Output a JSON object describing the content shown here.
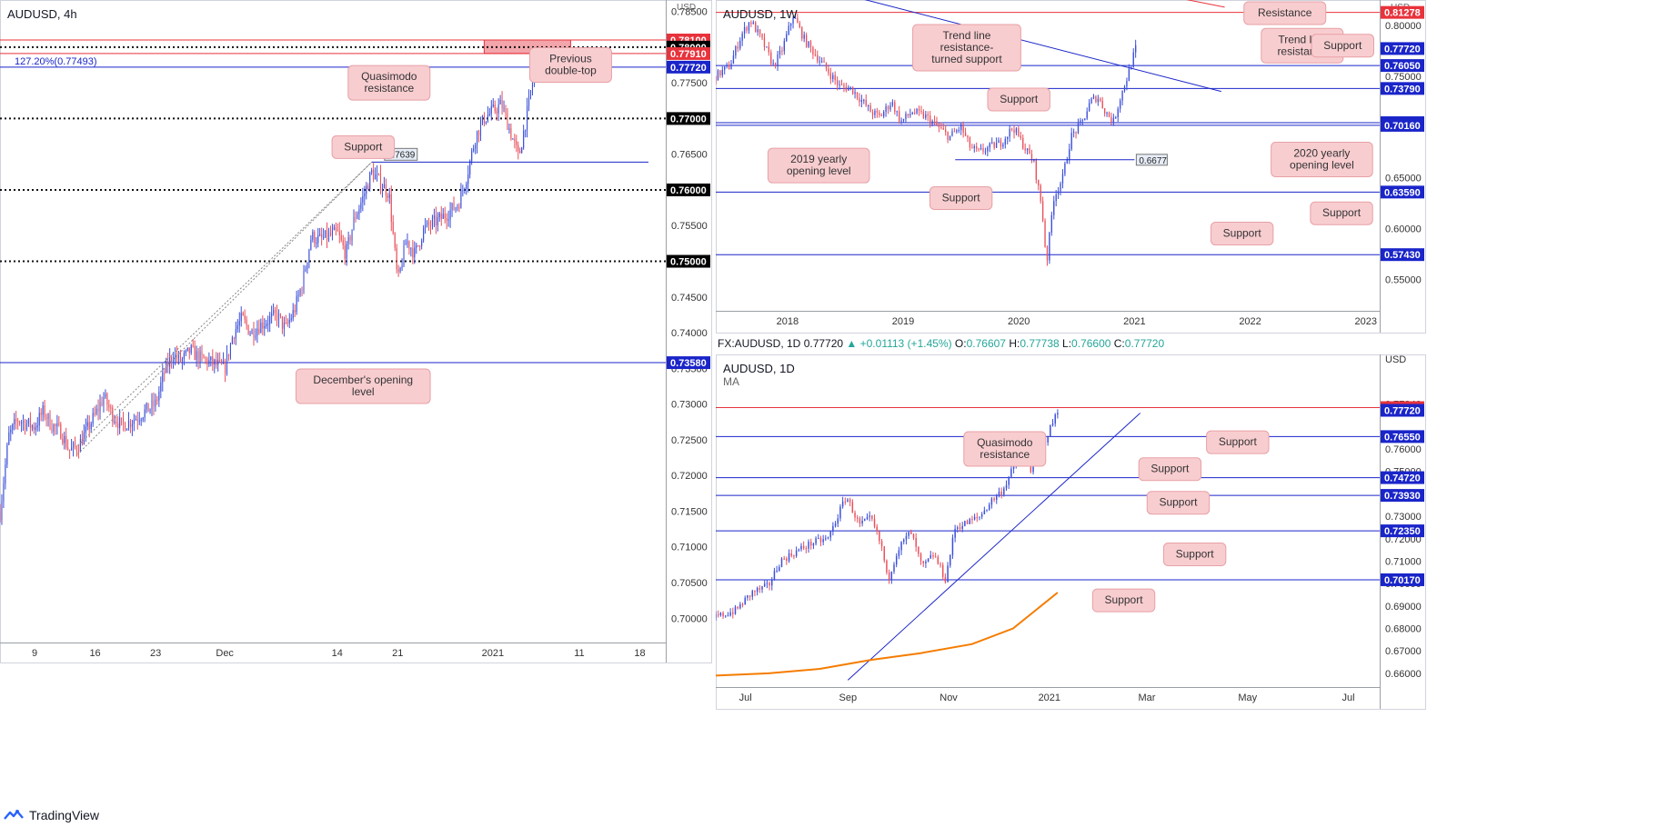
{
  "colors": {
    "up": "#3b4fd8",
    "down": "#e8505b",
    "support_line": "#1a25c9",
    "resistance_line": "#e8333c",
    "callout_bg": "#f8cdd0",
    "callout_border": "#e7a1a6",
    "ma": "#f57c00",
    "axis_text": "#333333",
    "grid_border": "#9aa0a6"
  },
  "footer": {
    "brand": "TradingView",
    "logo_icon": "tradingview-logo-icon"
  },
  "chart_data": [
    {
      "id": "h4",
      "type": "candlestick",
      "title": "AUDUSD, 4h",
      "ylim": [
        0.6966,
        0.7866
      ],
      "y_ticks": [
        0.785,
        0.78,
        0.775,
        0.77,
        0.765,
        0.76,
        0.755,
        0.75,
        0.745,
        0.74,
        0.735,
        0.73,
        0.725,
        0.72,
        0.715,
        0.71,
        0.705,
        0.7
      ],
      "y_tick_labels": [
        "0.78500",
        "0.78000",
        "0.77500",
        "0.77000",
        "0.76500",
        "0.76000",
        "0.75500",
        "0.75000",
        "0.74500",
        "0.74000",
        "0.73500",
        "0.73000",
        "0.72500",
        "0.72000",
        "0.71500",
        "0.71000",
        "0.70500",
        "0.70000"
      ],
      "axis_currency": "USD",
      "x_range": [
        "2020-11-05",
        "2021-01-21"
      ],
      "x_ticks": [
        {
          "x": "2020-11-09",
          "label": "9"
        },
        {
          "x": "2020-11-16",
          "label": "16"
        },
        {
          "x": "2020-11-23",
          "label": "23"
        },
        {
          "x": "2020-12-01",
          "label": "Dec"
        },
        {
          "x": "2020-12-14",
          "label": "14"
        },
        {
          "x": "2020-12-21",
          "label": "21"
        },
        {
          "x": "2021-01-01",
          "label": "2021"
        },
        {
          "x": "2021-01-11",
          "label": "11"
        },
        {
          "x": "2021-01-18",
          "label": "18"
        }
      ],
      "price_path": [
        [
          "2020-11-05",
          0.7148
        ],
        [
          "2020-11-06",
          0.7255
        ],
        [
          "2020-11-07",
          0.7278
        ],
        [
          "2020-11-09",
          0.7268
        ],
        [
          "2020-11-10",
          0.729
        ],
        [
          "2020-11-11",
          0.727
        ],
        [
          "2020-11-12",
          0.7262
        ],
        [
          "2020-11-13",
          0.7235
        ],
        [
          "2020-11-14",
          0.724
        ],
        [
          "2020-11-16",
          0.7285
        ],
        [
          "2020-11-17",
          0.731
        ],
        [
          "2020-11-18",
          0.7285
        ],
        [
          "2020-11-19",
          0.727
        ],
        [
          "2020-11-20",
          0.7275
        ],
        [
          "2020-11-23",
          0.73
        ],
        [
          "2020-11-24",
          0.7345
        ],
        [
          "2020-11-25",
          0.737
        ],
        [
          "2020-11-26",
          0.736
        ],
        [
          "2020-11-27",
          0.7375
        ],
        [
          "2020-11-28",
          0.7365
        ],
        [
          "2020-12-01",
          0.735
        ],
        [
          "2020-12-02",
          0.74
        ],
        [
          "2020-12-03",
          0.742
        ],
        [
          "2020-12-04",
          0.74
        ],
        [
          "2020-12-05",
          0.741
        ],
        [
          "2020-12-07",
          0.7425
        ],
        [
          "2020-12-08",
          0.7405
        ],
        [
          "2020-12-09",
          0.743
        ],
        [
          "2020-12-10",
          0.747
        ],
        [
          "2020-12-11",
          0.7535
        ],
        [
          "2020-12-12",
          0.753
        ],
        [
          "2020-12-14",
          0.754
        ],
        [
          "2020-12-15",
          0.751
        ],
        [
          "2020-12-16",
          0.756
        ],
        [
          "2020-12-17",
          0.759
        ],
        [
          "2020-12-18",
          0.7625
        ],
        [
          "2020-12-19",
          0.761
        ],
        [
          "2020-12-20",
          0.7595
        ],
        [
          "2020-12-21",
          0.747
        ],
        [
          "2020-12-22",
          0.753
        ],
        [
          "2020-12-23",
          0.751
        ],
        [
          "2020-12-24",
          0.7545
        ],
        [
          "2020-12-26",
          0.756
        ],
        [
          "2020-12-28",
          0.758
        ],
        [
          "2020-12-29",
          0.762
        ],
        [
          "2020-12-30",
          0.7675
        ],
        [
          "2020-12-31",
          0.77
        ],
        [
          "2021-01-01",
          0.771
        ],
        [
          "2021-01-02",
          0.772
        ],
        [
          "2021-01-04",
          0.7645
        ],
        [
          "2021-01-05",
          0.771
        ],
        [
          "2021-01-06",
          0.778
        ]
      ],
      "levels": [
        {
          "y": 0.781,
          "style": "solid",
          "color": "red",
          "label": "0.78100"
        },
        {
          "y": 0.78,
          "style": "dotted",
          "color": "black",
          "label": "0.78000"
        },
        {
          "y": 0.7791,
          "style": "solid",
          "color": "red",
          "label": "0.77910"
        },
        {
          "y": 0.7772,
          "style": "solid",
          "color": "blue",
          "label": "0.77720"
        },
        {
          "y": 0.77,
          "style": "dotted",
          "color": "black",
          "label": "0.77000"
        },
        {
          "y": 0.76,
          "style": "dotted",
          "color": "black",
          "label": "0.76000"
        },
        {
          "y": 0.75,
          "style": "dotted",
          "color": "black",
          "label": "0.75000"
        },
        {
          "y": 0.7358,
          "style": "solid",
          "color": "blue",
          "label": "0.73580"
        }
      ],
      "zone": {
        "x1": "2020-12-31",
        "x2": "2021-01-10",
        "y1": 0.7791,
        "y2": 0.781
      },
      "fib_label": "127.20%(0.77493)",
      "support_line": {
        "y": 0.7639,
        "x1": "2020-12-18",
        "x2": "2021-01-19",
        "label": "0.7639"
      },
      "channel": {
        "from": [
          "2020-11-14",
          0.723
        ],
        "to": [
          "2020-12-18",
          0.7639
        ]
      },
      "callouts": [
        {
          "text": [
            "Quasimodo",
            "resistance"
          ],
          "x": "2020-12-20",
          "y": 0.775,
          "pointer": "up"
        },
        {
          "text": [
            "Previous",
            "double-top"
          ],
          "x": "2021-01-10",
          "y": 0.7775,
          "pointer": "up"
        },
        {
          "text": [
            "Support"
          ],
          "x": "2020-12-17",
          "y": 0.766,
          "pointer": "down-right"
        },
        {
          "text": [
            "December's opening",
            "level"
          ],
          "x": "2020-12-17",
          "y": 0.7325,
          "pointer": "up"
        }
      ]
    },
    {
      "id": "w1",
      "type": "candlestick",
      "title": "AUDUSD, 1W",
      "ylim": [
        0.519,
        0.825
      ],
      "y_ticks": [
        0.8,
        0.75,
        0.7,
        0.65,
        0.6,
        0.55
      ],
      "y_tick_labels": [
        "0.80000",
        "0.75000",
        "0.70000",
        "0.65000",
        "0.60000",
        "0.55000"
      ],
      "axis_currency": "USD",
      "x_range": [
        2017.38,
        2023.12
      ],
      "x_ticks": [
        {
          "x": 2018.0,
          "label": "2018"
        },
        {
          "x": 2019.0,
          "label": "2019"
        },
        {
          "x": 2020.0,
          "label": "2020"
        },
        {
          "x": 2021.0,
          "label": "2021"
        },
        {
          "x": 2022.0,
          "label": "2022"
        },
        {
          "x": 2023.0,
          "label": "2023"
        }
      ],
      "price_path": [
        [
          2017.38,
          0.75
        ],
        [
          2017.5,
          0.76
        ],
        [
          2017.6,
          0.79
        ],
        [
          2017.68,
          0.805
        ],
        [
          2017.78,
          0.785
        ],
        [
          2017.88,
          0.76
        ],
        [
          2017.95,
          0.775
        ],
        [
          2018.05,
          0.81
        ],
        [
          2018.15,
          0.785
        ],
        [
          2018.25,
          0.77
        ],
        [
          2018.35,
          0.755
        ],
        [
          2018.45,
          0.74
        ],
        [
          2018.55,
          0.738
        ],
        [
          2018.65,
          0.725
        ],
        [
          2018.72,
          0.715
        ],
        [
          2018.8,
          0.71
        ],
        [
          2018.9,
          0.725
        ],
        [
          2018.98,
          0.705
        ],
        [
          2019.08,
          0.715
        ],
        [
          2019.2,
          0.71
        ],
        [
          2019.3,
          0.7
        ],
        [
          2019.4,
          0.69
        ],
        [
          2019.5,
          0.7
        ],
        [
          2019.58,
          0.68
        ],
        [
          2019.65,
          0.675
        ],
        [
          2019.75,
          0.68
        ],
        [
          2019.85,
          0.685
        ],
        [
          2019.95,
          0.7
        ],
        [
          2020.05,
          0.68
        ],
        [
          2020.13,
          0.665
        ],
        [
          2020.2,
          0.62
        ],
        [
          2020.24,
          0.565
        ],
        [
          2020.3,
          0.63
        ],
        [
          2020.38,
          0.65
        ],
        [
          2020.45,
          0.69
        ],
        [
          2020.55,
          0.705
        ],
        [
          2020.62,
          0.725
        ],
        [
          2020.68,
          0.73
        ],
        [
          2020.75,
          0.715
        ],
        [
          2020.82,
          0.705
        ],
        [
          2020.88,
          0.73
        ],
        [
          2020.94,
          0.75
        ],
        [
          2021.01,
          0.7772
        ]
      ],
      "levels": [
        {
          "y": 0.81278,
          "color": "red",
          "label": "0.81278"
        },
        {
          "y": 0.7772,
          "color": "blue",
          "label": "0.77720",
          "no_line": true
        },
        {
          "y": 0.7605,
          "color": "blue",
          "label": "0.76050"
        },
        {
          "y": 0.7379,
          "color": "blue",
          "label": "0.73790"
        },
        {
          "y": 0.7042,
          "color": "blue",
          "label": "0.70420"
        },
        {
          "y": 0.7016,
          "color": "blue",
          "label": "0.70160"
        },
        {
          "y": 0.6359,
          "color": "blue",
          "label": "0.63590"
        },
        {
          "y": 0.5743,
          "color": "blue",
          "label": "0.57430"
        }
      ],
      "short_support": {
        "y": 0.6677,
        "x1": 2019.45,
        "x2": 2021.0,
        "label": "0.6677"
      },
      "trend_lines": [
        {
          "color": "blue",
          "from": [
            2018.0,
            0.845
          ],
          "to": [
            2021.75,
            0.735
          ]
        },
        {
          "color": "red",
          "from": [
            2020.8,
            0.84
          ],
          "to": [
            2021.78,
            0.818
          ]
        }
      ],
      "callouts": [
        {
          "text": [
            "Trend line",
            "resistance-",
            "turned support"
          ],
          "x": 2019.55,
          "y": 0.778,
          "pointer": "right"
        },
        {
          "text": [
            "Resistance"
          ],
          "x": 2022.3,
          "y": 0.83,
          "pointer": "down"
        },
        {
          "text": [
            "Trend line",
            "resistance"
          ],
          "x": 2022.45,
          "y": 0.78,
          "pointer": "up-left"
        },
        {
          "text": [
            "Support"
          ],
          "x": 2022.8,
          "y": 0.78,
          "pointer": "down"
        },
        {
          "text": [
            "Support"
          ],
          "x": 2020.0,
          "y": 0.727,
          "pointer": "up"
        },
        {
          "text": [
            "2019 yearly",
            "opening level"
          ],
          "x": 2018.27,
          "y": 0.662,
          "pointer": "up"
        },
        {
          "text": [
            "2020 yearly",
            "opening level"
          ],
          "x": 2022.62,
          "y": 0.668,
          "pointer": "up"
        },
        {
          "text": [
            "Support"
          ],
          "x": 2019.5,
          "y": 0.63,
          "pointer": "up"
        },
        {
          "text": [
            "Support"
          ],
          "x": 2022.79,
          "y": 0.615,
          "pointer": "up"
        },
        {
          "text": [
            "Support"
          ],
          "x": 2021.93,
          "y": 0.595,
          "pointer": "down"
        }
      ]
    },
    {
      "id": "d1",
      "type": "candlestick",
      "title": "AUDUSD, 1D",
      "ma_label": "MA",
      "info_bar": {
        "symbol": "FX:AUDUSD, 1D",
        "last": "0.77720",
        "change": "+0.01113 (+1.45%)",
        "open_label": "O:",
        "open": "0.76607",
        "high_label": "H:",
        "high": "0.77738",
        "low_label": "L:",
        "low": "0.76600",
        "close_label": "C:",
        "close": "0.77720"
      },
      "ylim": [
        0.6539,
        0.8021
      ],
      "y_ticks": [
        0.8,
        0.78,
        0.76,
        0.75,
        0.73,
        0.72,
        0.71,
        0.7,
        0.69,
        0.68,
        0.67,
        0.66
      ],
      "y_tick_labels": [
        "USD",
        "0.77840",
        "0.76000",
        "0.75000",
        "0.73000",
        "0.72000",
        "0.71000",
        "0.70000",
        "0.69000",
        "0.68000",
        "0.67000",
        "0.66000"
      ],
      "x_range": [
        "2020-06-13",
        "2021-07-20"
      ],
      "x_ticks": [
        {
          "x": "2020-07-01",
          "label": "Jul"
        },
        {
          "x": "2020-09-01",
          "label": "Sep"
        },
        {
          "x": "2020-11-01",
          "label": "Nov"
        },
        {
          "x": "2021-01-01",
          "label": "2021"
        },
        {
          "x": "2021-03-01",
          "label": "Mar"
        },
        {
          "x": "2021-05-01",
          "label": "May"
        },
        {
          "x": "2021-07-01",
          "label": "Jul"
        }
      ],
      "price_path": [
        [
          "2020-06-13",
          0.685
        ],
        [
          "2020-06-25",
          0.688
        ],
        [
          "2020-07-05",
          0.696
        ],
        [
          "2020-07-15",
          0.699
        ],
        [
          "2020-07-22",
          0.71
        ],
        [
          "2020-07-31",
          0.714
        ],
        [
          "2020-08-10",
          0.718
        ],
        [
          "2020-08-20",
          0.72
        ],
        [
          "2020-08-31",
          0.739
        ],
        [
          "2020-09-08",
          0.726
        ],
        [
          "2020-09-15",
          0.729
        ],
        [
          "2020-09-22",
          0.715
        ],
        [
          "2020-09-25",
          0.701
        ],
        [
          "2020-10-01",
          0.715
        ],
        [
          "2020-10-09",
          0.723
        ],
        [
          "2020-10-16",
          0.707
        ],
        [
          "2020-10-23",
          0.713
        ],
        [
          "2020-10-30",
          0.702
        ],
        [
          "2020-11-05",
          0.725
        ],
        [
          "2020-11-12",
          0.727
        ],
        [
          "2020-11-20",
          0.73
        ],
        [
          "2020-11-27",
          0.737
        ],
        [
          "2020-12-04",
          0.742
        ],
        [
          "2020-12-11",
          0.753
        ],
        [
          "2020-12-18",
          0.763
        ],
        [
          "2020-12-21",
          0.75
        ],
        [
          "2020-12-28",
          0.762
        ],
        [
          "2021-01-01",
          0.768
        ],
        [
          "2021-01-06",
          0.7772
        ]
      ],
      "ma_path": [
        [
          "2020-06-13",
          0.659
        ],
        [
          "2020-07-15",
          0.66
        ],
        [
          "2020-08-15",
          0.662
        ],
        [
          "2020-09-15",
          0.666
        ],
        [
          "2020-10-15",
          0.669
        ],
        [
          "2020-11-15",
          0.673
        ],
        [
          "2020-12-10",
          0.68
        ],
        [
          "2021-01-06",
          0.696
        ]
      ],
      "levels": [
        {
          "y": 0.7784,
          "color": "red",
          "label": "0.77840"
        },
        {
          "y": 0.7772,
          "color": "blue",
          "label": "0.77720",
          "no_line": true
        },
        {
          "y": 0.7655,
          "color": "blue",
          "label": "0.76550"
        },
        {
          "y": 0.7472,
          "color": "blue",
          "label": "0.74720"
        },
        {
          "y": 0.7393,
          "color": "blue",
          "label": "0.73930"
        },
        {
          "y": 0.7235,
          "color": "blue",
          "label": "0.72350"
        },
        {
          "y": 0.7017,
          "color": "blue",
          "label": "0.70170"
        }
      ],
      "trend_line": {
        "from": [
          "2020-09-01",
          0.657
        ],
        "to": [
          "2021-02-25",
          0.776
        ]
      },
      "callouts": [
        {
          "text": [
            "Quasimodo",
            "resistance"
          ],
          "x": "2020-12-05",
          "y": 0.76,
          "pointer": "up"
        },
        {
          "text": [
            "Support"
          ],
          "x": "2021-04-25",
          "y": 0.763,
          "pointer": "up"
        },
        {
          "text": [
            "Support"
          ],
          "x": "2021-03-15",
          "y": 0.751,
          "pointer": "down"
        },
        {
          "text": [
            "Support"
          ],
          "x": "2021-03-20",
          "y": 0.736,
          "pointer": "up"
        },
        {
          "text": [
            "Support"
          ],
          "x": "2021-03-30",
          "y": 0.713,
          "pointer": "up"
        },
        {
          "text": [
            "Support"
          ],
          "x": "2021-02-15",
          "y": 0.6925,
          "pointer": "up"
        }
      ]
    }
  ]
}
